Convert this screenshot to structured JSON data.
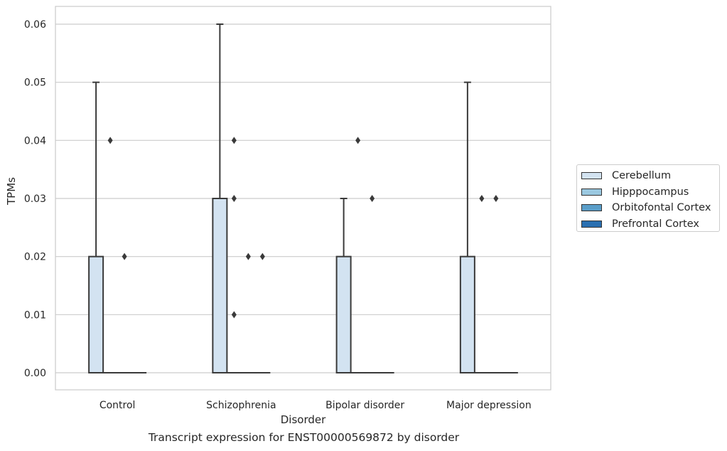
{
  "chart_data": {
    "type": "boxplot",
    "title": "Transcript expression for ENST00000569872 by disorder",
    "xlabel": "Disorder",
    "ylabel": "TPMs",
    "ylim": [
      -0.003,
      0.063
    ],
    "yticks": [
      0.0,
      0.01,
      0.02,
      0.03,
      0.04,
      0.05,
      0.06
    ],
    "ytick_labels": [
      "0.00",
      "0.01",
      "0.02",
      "0.03",
      "0.04",
      "0.05",
      "0.06"
    ],
    "grid": true,
    "legend_position": "right",
    "categories": [
      "Control",
      "Schizophrenia",
      "Bipolar disorder",
      "Major depression"
    ],
    "series": [
      {
        "name": "Cerebellum",
        "color": "#d3e3f1",
        "boxes": [
          {
            "whislo": 0.0,
            "q1": 0.0,
            "med": 0.0,
            "q3": 0.02,
            "whishi": 0.05,
            "fliers": []
          },
          {
            "whislo": 0.0,
            "q1": 0.0,
            "med": 0.0,
            "q3": 0.03,
            "whishi": 0.06,
            "fliers": []
          },
          {
            "whislo": 0.0,
            "q1": 0.0,
            "med": 0.0,
            "q3": 0.02,
            "whishi": 0.03,
            "fliers": []
          },
          {
            "whislo": 0.0,
            "q1": 0.0,
            "med": 0.0,
            "q3": 0.02,
            "whishi": 0.05,
            "fliers": []
          }
        ]
      },
      {
        "name": "Hipppocampus",
        "color": "#9ac8e0",
        "boxes": [
          {
            "whislo": 0.0,
            "q1": 0.0,
            "med": 0.0,
            "q3": 0.0,
            "whishi": 0.0,
            "fliers": [
              0.04
            ]
          },
          {
            "whislo": 0.0,
            "q1": 0.0,
            "med": 0.0,
            "q3": 0.0,
            "whishi": 0.0,
            "fliers": [
              0.04,
              0.03,
              0.01
            ]
          },
          {
            "whislo": 0.0,
            "q1": 0.0,
            "med": 0.0,
            "q3": 0.0,
            "whishi": 0.0,
            "fliers": [
              0.04
            ]
          },
          {
            "whislo": 0.0,
            "q1": 0.0,
            "med": 0.0,
            "q3": 0.0,
            "whishi": 0.0,
            "fliers": [
              0.03
            ]
          }
        ]
      },
      {
        "name": "Orbitofontal Cortex",
        "color": "#5a9ec9",
        "boxes": [
          {
            "whislo": 0.0,
            "q1": 0.0,
            "med": 0.0,
            "q3": 0.0,
            "whishi": 0.0,
            "fliers": [
              0.02
            ]
          },
          {
            "whislo": 0.0,
            "q1": 0.0,
            "med": 0.0,
            "q3": 0.0,
            "whishi": 0.0,
            "fliers": [
              0.02
            ]
          },
          {
            "whislo": 0.0,
            "q1": 0.0,
            "med": 0.0,
            "q3": 0.0,
            "whishi": 0.0,
            "fliers": [
              0.03
            ]
          },
          {
            "whislo": 0.0,
            "q1": 0.0,
            "med": 0.0,
            "q3": 0.0,
            "whishi": 0.0,
            "fliers": [
              0.03
            ]
          }
        ]
      },
      {
        "name": "Prefrontal Cortex",
        "color": "#2a6fb0",
        "boxes": [
          {
            "whislo": 0.0,
            "q1": 0.0,
            "med": 0.0,
            "q3": 0.0,
            "whishi": 0.0,
            "fliers": []
          },
          {
            "whislo": 0.0,
            "q1": 0.0,
            "med": 0.0,
            "q3": 0.0,
            "whishi": 0.0,
            "fliers": [
              0.02
            ]
          },
          {
            "whislo": 0.0,
            "q1": 0.0,
            "med": 0.0,
            "q3": 0.0,
            "whishi": 0.0,
            "fliers": []
          },
          {
            "whislo": 0.0,
            "q1": 0.0,
            "med": 0.0,
            "q3": 0.0,
            "whishi": 0.0,
            "fliers": []
          }
        ]
      }
    ]
  }
}
